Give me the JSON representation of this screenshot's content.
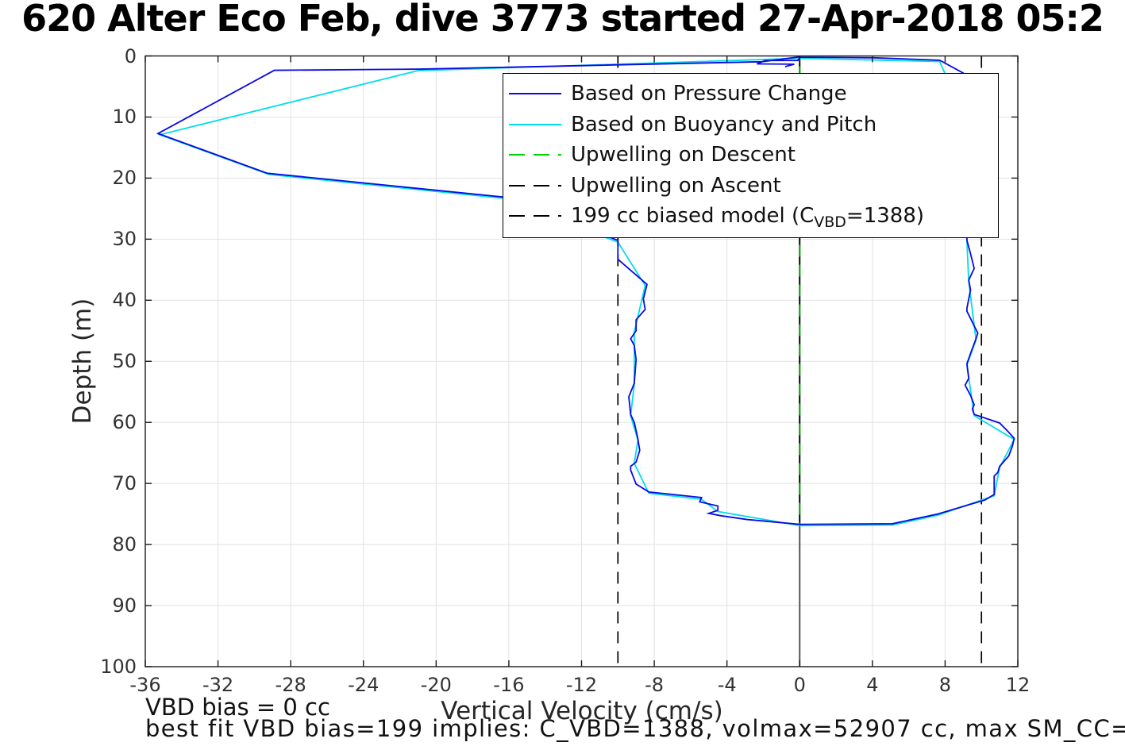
{
  "title": "620 Alter Eco Feb, dive 3773 started 27-Apr-2018 05:2",
  "axes": {
    "xlabel": "Vertical Velocity (cm/s)",
    "ylabel": "Depth (m)",
    "xlim": [
      -36,
      12
    ],
    "ylim": [
      0,
      100
    ],
    "x_ticks": [
      -36,
      -32,
      -28,
      -24,
      -20,
      -16,
      -12,
      -8,
      -4,
      0,
      4,
      8,
      12
    ],
    "y_ticks": [
      0,
      10,
      20,
      30,
      40,
      50,
      60,
      70,
      80,
      90,
      100
    ]
  },
  "annotations": {
    "vbd_bias": "VBD bias = 0 cc",
    "best_fit": "best fit VBD bias=199 implies: C_VBD=1388, volmax=52907 cc, max SM_CC="
  },
  "legend": {
    "items": [
      {
        "label": "Based on Pressure Change",
        "color": "#0a0ae0",
        "style": "solid"
      },
      {
        "label": "Based on Buoyancy and Pitch",
        "color": "#00dde8",
        "style": "solid"
      },
      {
        "label": "Upwelling on Descent",
        "color": "#00d400",
        "style": "dashed"
      },
      {
        "label": "Upwelling on Ascent",
        "color": "#000000",
        "style": "dashed"
      },
      {
        "label_pre": "199 cc biased model (C",
        "label_sub": "VBD",
        "label_post": "=1388)",
        "color": "#000000",
        "style": "dashed"
      }
    ]
  },
  "colors": {
    "grid": "#e2e2e2",
    "axis": "#1a1a1a",
    "tick_label": "#333333",
    "zero_line": "#555555"
  },
  "chart_data": {
    "type": "line",
    "title": "620 Alter Eco Feb, dive 3773 started 27-Apr-2018 05:2",
    "xlabel": "Vertical Velocity (cm/s)",
    "ylabel": "Depth (m)",
    "xlim": [
      -36,
      12
    ],
    "ylim": [
      0,
      100
    ],
    "y_inverted": true,
    "grid": true,
    "legend_position": "upper center-right",
    "series": [
      {
        "name": "zero reference line",
        "color": "#555555",
        "style": "solid",
        "width": 2,
        "in_legend": false,
        "segments": [
          [
            [
              0,
              0
            ],
            [
              0,
              100
            ]
          ]
        ]
      },
      {
        "name": "199 cc biased model (C_VBD=1388)",
        "color": "#000000",
        "style": "dashed",
        "width": 1.7,
        "in_legend": true,
        "segments": [
          [
            [
              -10,
              0
            ],
            [
              -10,
              100
            ]
          ],
          [
            [
              10,
              0
            ],
            [
              10,
              100
            ]
          ]
        ]
      },
      {
        "name": "Upwelling on Ascent",
        "color": "#000000",
        "style": "dashed",
        "width": 1.7,
        "in_legend": true,
        "segments": [
          [
            [
              0,
              0
            ],
            [
              0,
              76.8
            ]
          ]
        ]
      },
      {
        "name": "Upwelling on Descent",
        "color": "#00b400",
        "style": "dashed",
        "width": 2,
        "dashoffset": 12,
        "in_legend": true,
        "segments": [
          [
            [
              0,
              0
            ],
            [
              0,
              76.8
            ]
          ]
        ]
      },
      {
        "name": "Based on Buoyancy and Pitch",
        "color": "#00dde8",
        "style": "solid",
        "width": 1.8,
        "in_legend": true,
        "segments": [
          [
            [
              -0.1,
              0.4
            ],
            [
              -21.0,
              2.4
            ],
            [
              -35.2,
              12.9
            ],
            [
              -29.2,
              19.4
            ],
            [
              -16.3,
              23.3
            ],
            [
              -10.0,
              30.5
            ],
            [
              -8.5,
              37.6
            ],
            [
              -9.1,
              45.2
            ],
            [
              -9.1,
              53.8
            ],
            [
              -9.3,
              58.9
            ],
            [
              -8.9,
              62.9
            ],
            [
              -9.1,
              66.7
            ],
            [
              -8.3,
              71.6
            ],
            [
              -5.4,
              72.6
            ],
            [
              -4.5,
              74.6
            ],
            [
              0.0,
              76.9
            ],
            [
              5.1,
              76.8
            ],
            [
              7.6,
              75.2
            ],
            [
              10.7,
              72.0
            ],
            [
              11.0,
              67.4
            ],
            [
              11.8,
              62.8
            ],
            [
              9.6,
              58.9
            ],
            [
              9.2,
              50.6
            ],
            [
              9.7,
              46.5
            ],
            [
              9.3,
              36.9
            ],
            [
              9.2,
              30.4
            ],
            [
              9.1,
              10.5
            ],
            [
              7.7,
              0.9
            ],
            [
              0.0,
              0.4
            ]
          ]
        ]
      },
      {
        "name": "Based on Pressure Change",
        "color": "#0a0ae0",
        "style": "solid",
        "width": 1.8,
        "in_legend": true,
        "segments": [
          [
            [
              0.0,
              0.15
            ],
            [
              -2.1,
              0.95
            ],
            [
              -20.8,
              2.15
            ],
            [
              -28.9,
              2.35
            ],
            [
              -35.3,
              12.7
            ],
            [
              -29.3,
              19.2
            ],
            [
              -16.3,
              23.1
            ],
            [
              -10.0,
              30.2
            ],
            [
              -10.0,
              33.3
            ],
            [
              -8.4,
              37.4
            ],
            [
              -8.6,
              39.8
            ],
            [
              -8.5,
              41.5
            ],
            [
              -9.0,
              43.2
            ],
            [
              -9.0,
              45.0
            ],
            [
              -9.3,
              46.3
            ],
            [
              -9.1,
              47.4
            ],
            [
              -9.0,
              49.7
            ],
            [
              -9.1,
              53.6
            ],
            [
              -9.4,
              55.8
            ],
            [
              -9.3,
              58.7
            ],
            [
              -9.1,
              60.0
            ],
            [
              -8.9,
              62.7
            ],
            [
              -8.8,
              64.6
            ],
            [
              -9.0,
              66.5
            ],
            [
              -9.3,
              67.2
            ],
            [
              -9.3,
              67.8
            ],
            [
              -9.0,
              70.1
            ],
            [
              -8.3,
              71.4
            ],
            [
              -5.4,
              72.3
            ],
            [
              -5.5,
              73.0
            ],
            [
              -4.5,
              73.7
            ],
            [
              -4.5,
              74.4
            ],
            [
              -5.0,
              74.9
            ],
            [
              -4.3,
              75.3
            ],
            [
              -2.9,
              75.9
            ],
            [
              0.0,
              76.7
            ],
            [
              5.1,
              76.6
            ],
            [
              7.6,
              75.0
            ],
            [
              10.2,
              72.7
            ],
            [
              10.7,
              71.8
            ],
            [
              10.7,
              68.8
            ],
            [
              10.9,
              68.2
            ],
            [
              11.0,
              67.2
            ],
            [
              11.5,
              65.5
            ],
            [
              11.7,
              63.9
            ],
            [
              11.8,
              62.6
            ],
            [
              11.4,
              61.3
            ],
            [
              11.0,
              60.1
            ],
            [
              9.6,
              58.7
            ],
            [
              9.5,
              57.8
            ],
            [
              9.6,
              57.1
            ],
            [
              9.4,
              55.6
            ],
            [
              9.1,
              53.9
            ],
            [
              9.3,
              52.8
            ],
            [
              9.2,
              50.4
            ],
            [
              9.4,
              48.7
            ],
            [
              9.7,
              46.3
            ],
            [
              9.8,
              45.4
            ],
            [
              9.2,
              41.8
            ],
            [
              9.2,
              41.3
            ],
            [
              9.4,
              38.3
            ],
            [
              9.3,
              36.7
            ],
            [
              9.6,
              34.8
            ],
            [
              9.4,
              32.4
            ],
            [
              9.2,
              30.2
            ],
            [
              9.2,
              23.3
            ],
            [
              9.1,
              10.3
            ],
            [
              9.0,
              2.8
            ],
            [
              7.7,
              0.7
            ],
            [
              4.1,
              0.3
            ],
            [
              0.0,
              0.2
            ],
            [
              -0.1,
              0.75
            ],
            [
              -1.9,
              0.75
            ],
            [
              -2.35,
              1.3
            ],
            [
              -0.3,
              1.35
            ],
            [
              -0.8,
              1.75
            ]
          ]
        ]
      }
    ]
  }
}
